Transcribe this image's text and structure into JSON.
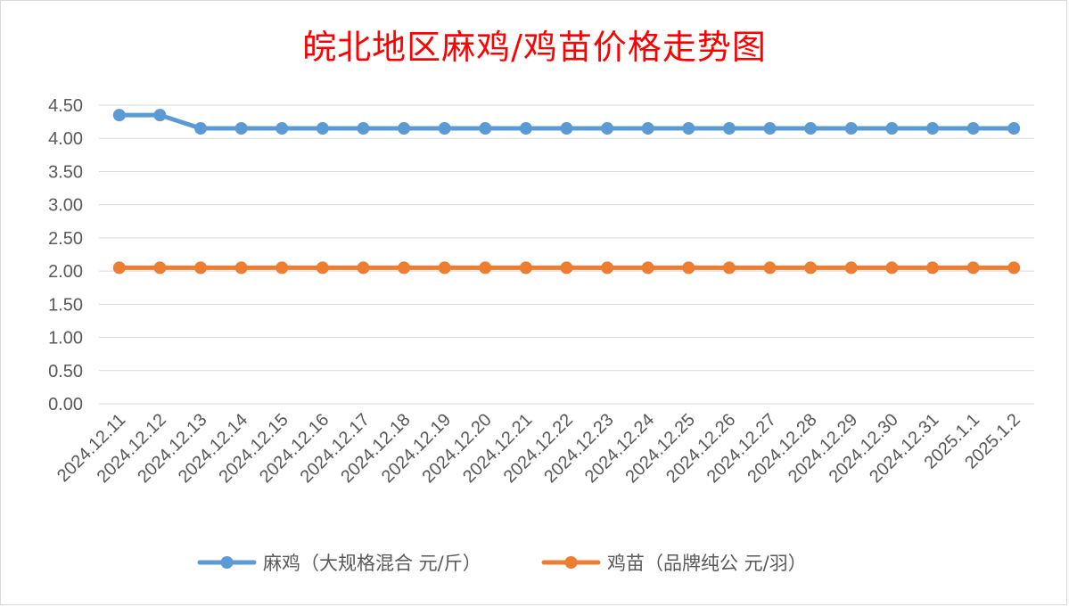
{
  "chart_data": {
    "type": "line",
    "title": "皖北地区麻鸡/鸡苗价格走势图",
    "categories": [
      "2024.12.11",
      "2024.12.12",
      "2024.12.13",
      "2024.12.14",
      "2024.12.15",
      "2024.12.16",
      "2024.12.17",
      "2024.12.18",
      "2024.12.19",
      "2024.12.20",
      "2024.12.21",
      "2024.12.22",
      "2024.12.23",
      "2024.12.24",
      "2024.12.25",
      "2024.12.26",
      "2024.12.27",
      "2024.12.28",
      "2024.12.29",
      "2024.12.30",
      "2024.12.31",
      "2025.1.1",
      "2025.1.2"
    ],
    "yticks": [
      "0.00",
      "0.50",
      "1.00",
      "1.50",
      "2.00",
      "2.50",
      "3.00",
      "3.50",
      "4.00",
      "4.50"
    ],
    "ylim": [
      0,
      4.5
    ],
    "grid": true,
    "legend_position": "bottom",
    "series": [
      {
        "name": "麻鸡（大规格混合 元/斤）",
        "color": "#5b9bd5",
        "values": [
          4.35,
          4.35,
          4.15,
          4.15,
          4.15,
          4.15,
          4.15,
          4.15,
          4.15,
          4.15,
          4.15,
          4.15,
          4.15,
          4.15,
          4.15,
          4.15,
          4.15,
          4.15,
          4.15,
          4.15,
          4.15,
          4.15,
          4.15
        ]
      },
      {
        "name": "鸡苗（品牌纯公 元/羽）",
        "color": "#ed7d31",
        "values": [
          2.05,
          2.05,
          2.05,
          2.05,
          2.05,
          2.05,
          2.05,
          2.05,
          2.05,
          2.05,
          2.05,
          2.05,
          2.05,
          2.05,
          2.05,
          2.05,
          2.05,
          2.05,
          2.05,
          2.05,
          2.05,
          2.05,
          2.05
        ]
      }
    ]
  }
}
